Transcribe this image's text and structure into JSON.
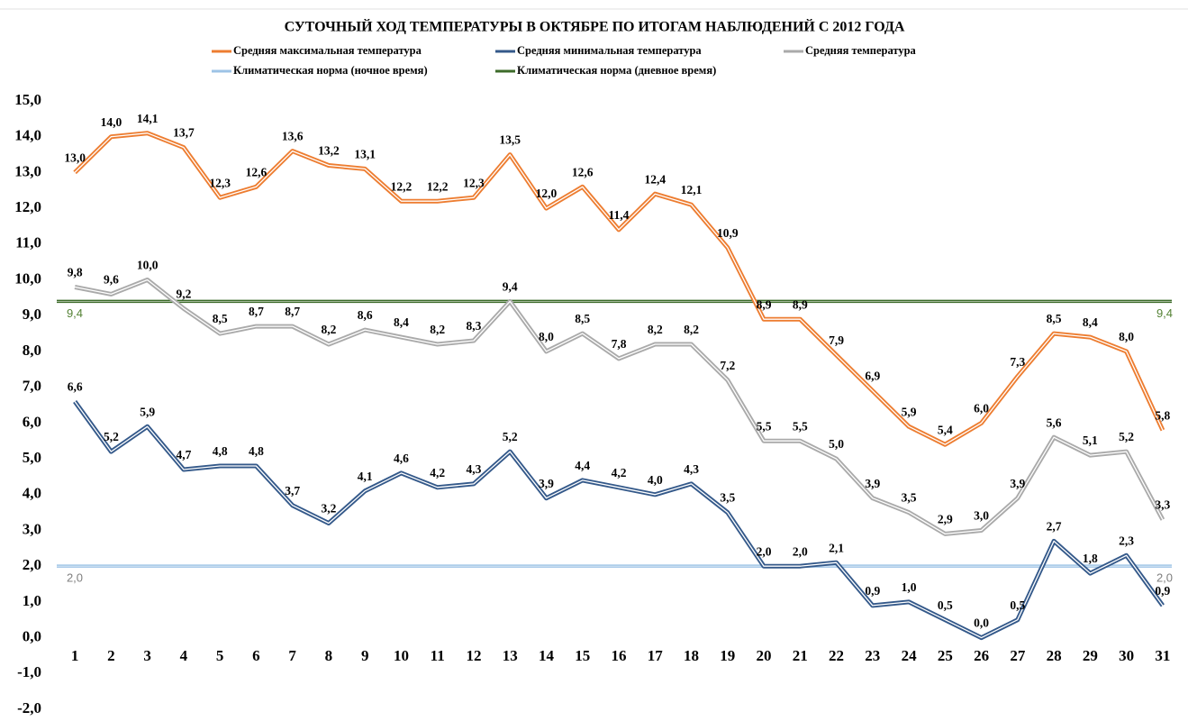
{
  "chart_data": {
    "type": "line",
    "title": "СУТОЧНЫЙ ХОД ТЕМПЕРАТУРЫ В ОКТЯБРЕ ПО ИТОГАМ НАБЛЮДЕНИЙ С 2012 ГОДА",
    "categories": [
      "1",
      "2",
      "3",
      "4",
      "5",
      "6",
      "7",
      "8",
      "9",
      "10",
      "11",
      "12",
      "13",
      "14",
      "15",
      "16",
      "17",
      "18",
      "19",
      "20",
      "21",
      "22",
      "23",
      "24",
      "25",
      "26",
      "27",
      "28",
      "29",
      "30",
      "31"
    ],
    "series": [
      {
        "name": "Средняя максимальная температура",
        "color": "#ed7d31",
        "values": [
          13.0,
          14.0,
          14.1,
          13.7,
          12.3,
          12.6,
          13.6,
          13.2,
          13.1,
          12.2,
          12.2,
          12.3,
          13.5,
          12.0,
          12.6,
          11.4,
          12.4,
          12.1,
          10.9,
          8.9,
          8.9,
          7.9,
          6.9,
          5.9,
          5.4,
          6.0,
          7.3,
          8.5,
          8.4,
          8.0,
          5.8
        ],
        "value_labels": [
          "13,0",
          "14,0",
          "14,1",
          "13,7",
          "12,3",
          "12,6",
          "13,6",
          "13,2",
          "13,1",
          "12,2",
          "12,2",
          "12,3",
          "13,5",
          "12,0",
          "12,6",
          "11,4",
          "12,4",
          "12,1",
          "10,9",
          "8,9",
          "8,9",
          "7,9",
          "6,9",
          "5,9",
          "5,4",
          "6,0",
          "7,3",
          "8,5",
          "8,4",
          "8,0",
          "5,8"
        ]
      },
      {
        "name": "Средняя минимальная температура",
        "color": "#34598a",
        "values": [
          6.6,
          5.2,
          5.9,
          4.7,
          4.8,
          4.8,
          3.7,
          3.2,
          4.1,
          4.6,
          4.2,
          4.3,
          5.2,
          3.9,
          4.4,
          4.2,
          4.0,
          4.3,
          3.5,
          2.0,
          2.0,
          2.1,
          0.9,
          1.0,
          0.5,
          0.0,
          0.5,
          2.7,
          1.8,
          2.3,
          0.9
        ],
        "value_labels": [
          "6,6",
          "5,2",
          "5,9",
          "4,7",
          "4,8",
          "4,8",
          "3,7",
          "3,2",
          "4,1",
          "4,6",
          "4,2",
          "4,3",
          "5,2",
          "3,9",
          "4,4",
          "4,2",
          "4,0",
          "4,3",
          "3,5",
          "2,0",
          "2,0",
          "2,1",
          "0,9",
          "1,0",
          "0,5",
          "0,0",
          "0,5",
          "2,7",
          "1,8",
          "2,3",
          "0,9"
        ]
      },
      {
        "name": "Средняя температура",
        "color": "#aaaaaa",
        "values": [
          9.8,
          9.6,
          10.0,
          9.2,
          8.5,
          8.7,
          8.7,
          8.2,
          8.6,
          8.4,
          8.2,
          8.3,
          9.4,
          8.0,
          8.5,
          7.8,
          8.2,
          8.2,
          7.2,
          5.5,
          5.5,
          5.0,
          3.9,
          3.5,
          2.9,
          3.0,
          3.9,
          5.6,
          5.1,
          5.2,
          3.3
        ],
        "value_labels": [
          "9,8",
          "9,6",
          "10,0",
          "9,2",
          "8,5",
          "8,7",
          "8,7",
          "8,2",
          "8,6",
          "8,4",
          "8,2",
          "8,3",
          "9,4",
          "8,0",
          "8,5",
          "7,8",
          "8,2",
          "8,2",
          "7,2",
          "5,5",
          "5,5",
          "5,0",
          "3,9",
          "3,5",
          "2,9",
          "3,0",
          "3,9",
          "5,6",
          "5,1",
          "5,2",
          "3,3"
        ]
      }
    ],
    "reference_lines": [
      {
        "name": "Климатическая норма (ночное время)",
        "color": "#9dc3e6",
        "label_color": "#7f7f7f",
        "value": 2.0,
        "label": "2,0"
      },
      {
        "name": "Климатическая норма (дневное время)",
        "color": "#3d6b2a",
        "label_color": "#548235",
        "value": 9.4,
        "label": "9,4"
      }
    ],
    "ylim": [
      -2,
      15
    ],
    "yticks": [
      {
        "value": -2,
        "label": "-2,0"
      },
      {
        "value": -1,
        "label": "-1,0"
      },
      {
        "value": 0,
        "label": "0,0"
      },
      {
        "value": 1,
        "label": "1,0"
      },
      {
        "value": 2,
        "label": "2,0"
      },
      {
        "value": 3,
        "label": "3,0"
      },
      {
        "value": 4,
        "label": "4,0"
      },
      {
        "value": 5,
        "label": "5,0"
      },
      {
        "value": 6,
        "label": "6,0"
      },
      {
        "value": 7,
        "label": "7,0"
      },
      {
        "value": 8,
        "label": "8,0"
      },
      {
        "value": 9,
        "label": "9,0"
      },
      {
        "value": 10,
        "label": "10,0"
      },
      {
        "value": 11,
        "label": "11,0"
      },
      {
        "value": 12,
        "label": "12,0"
      },
      {
        "value": 13,
        "label": "13,0"
      },
      {
        "value": 14,
        "label": "14,0"
      },
      {
        "value": 15,
        "label": "15,0"
      }
    ],
    "grid": false
  }
}
